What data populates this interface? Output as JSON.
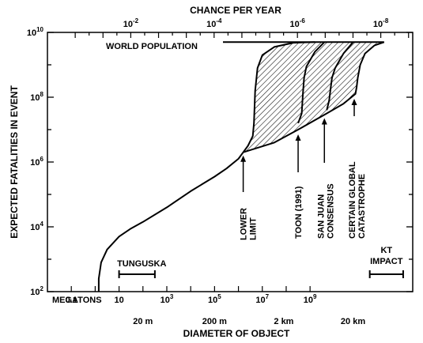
{
  "chart_data": {
    "type": "area",
    "title": "",
    "top_axis": {
      "label": "CHANCE PER YEAR",
      "ticks": [
        {
          "value": 8,
          "base": "10",
          "exp": "-2"
        },
        {
          "value": 14,
          "base": "10",
          "exp": "-4"
        },
        {
          "value": 20,
          "base": "10",
          "exp": "-6"
        },
        {
          "value": 26,
          "base": "10",
          "exp": "-8"
        }
      ]
    },
    "y_axis": {
      "label": "EXPECTED FATALITIES IN EVENT",
      "scale": "log",
      "range_log10": [
        2,
        10
      ],
      "ticks": [
        {
          "value": 2,
          "base": "10",
          "exp": "2"
        },
        {
          "value": 4,
          "base": "10",
          "exp": "4"
        },
        {
          "value": 6,
          "base": "10",
          "exp": "6"
        },
        {
          "value": 8,
          "base": "10",
          "exp": "8"
        },
        {
          "value": 10,
          "base": "10",
          "exp": "10"
        }
      ]
    },
    "x_axis_megatons": {
      "label": "MEGATONS",
      "scale": "log",
      "range_log10": [
        -2,
        9
      ],
      "ticks": [
        {
          "value": -1,
          "base": "0.1",
          "exp": ""
        },
        {
          "value": 1,
          "base": "10",
          "exp": ""
        },
        {
          "value": 3,
          "base": "10",
          "exp": "3"
        },
        {
          "value": 5,
          "base": "10",
          "exp": "5"
        },
        {
          "value": 7,
          "base": "10",
          "exp": "7"
        },
        {
          "value": 9,
          "base": "10",
          "exp": "9"
        }
      ]
    },
    "x_axis_diameter": {
      "label": "DIAMETER OF OBJECT",
      "ticks": [
        {
          "value": 2,
          "text": "20 m"
        },
        {
          "value": 5,
          "text": "200 m"
        },
        {
          "value": 7.9,
          "text": "2 km"
        },
        {
          "value": 10.8,
          "text": "20 km"
        }
      ]
    },
    "world_population": {
      "label": "WORLD POPULATION",
      "log10_fatalities": 9.7
    },
    "main_curve": {
      "x": [
        0.15,
        0.15,
        0.25,
        0.5,
        1,
        1.5,
        2,
        3,
        4,
        5,
        5.5,
        6,
        6.2
      ],
      "y": [
        2,
        2.4,
        2.9,
        3.3,
        3.7,
        3.95,
        4.15,
        4.6,
        5.1,
        5.55,
        5.8,
        6.1,
        6.3
      ]
    },
    "lower_limit_curve": {
      "x": [
        6.2,
        6.4,
        6.6,
        6.65,
        6.7,
        6.8,
        7.0,
        7.5,
        8.3,
        9.2
      ],
      "y": [
        6.3,
        6.5,
        6.8,
        7.2,
        8.2,
        8.9,
        9.3,
        9.55,
        9.68,
        9.7
      ]
    },
    "toon_curve": {
      "x": [
        8.5,
        8.65,
        8.7,
        8.75,
        8.85,
        9.2,
        9.6
      ],
      "y": [
        7.2,
        7.5,
        8.1,
        8.6,
        8.95,
        9.4,
        9.7
      ]
    },
    "san_juan_curve": {
      "x": [
        9.7,
        9.8,
        9.85,
        9.92,
        10.05,
        10.4,
        10.8
      ],
      "y": [
        7.6,
        7.9,
        8.2,
        8.6,
        8.9,
        9.35,
        9.7
      ]
    },
    "certain_global_curve": {
      "x": [
        6.2,
        7.5,
        8.5,
        9.7,
        10.4,
        10.9,
        10.95,
        11.0,
        11.1,
        11.3,
        11.7,
        12.1
      ],
      "y": [
        6.3,
        6.6,
        7.0,
        7.5,
        7.8,
        8.1,
        8.3,
        8.6,
        9.0,
        9.35,
        9.6,
        9.7
      ]
    },
    "annotations": {
      "lower_limit": "LOWER LIMIT",
      "toon": "TOON (1991)",
      "san_juan": "SAN JUAN CONSENSUS",
      "certain": "CERTAIN GLOBAL CATASTROPHE",
      "tunguska": "TUNGUSKA",
      "kt_line1": "KT",
      "kt_line2": "IMPACT"
    },
    "arrow_targets": {
      "lower_limit": {
        "x": 6.2,
        "y": 6.3
      },
      "toon": {
        "x": 8.5,
        "y": 6.95
      },
      "san_juan": {
        "x": 9.6,
        "y": 7.45
      },
      "certain": {
        "x": 10.85,
        "y": 8.05
      }
    },
    "tunguska_range": [
      1.0,
      2.5
    ],
    "kt_range": [
      11.5,
      12.9
    ]
  }
}
